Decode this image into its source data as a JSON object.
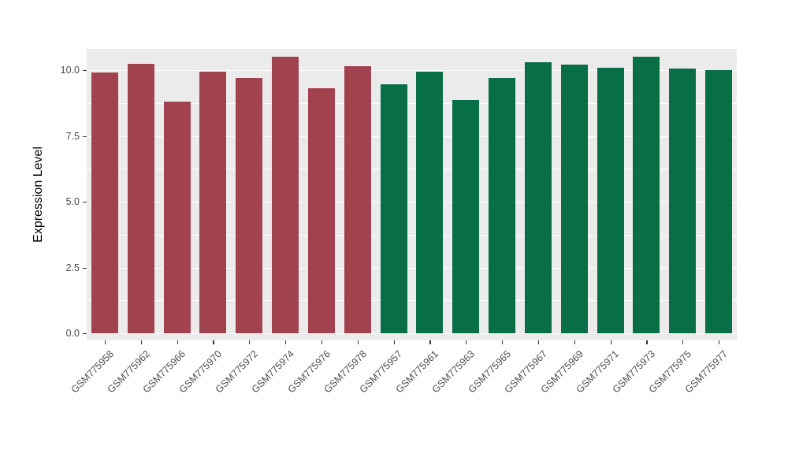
{
  "chart_data": {
    "type": "bar",
    "title": "",
    "xlabel": "",
    "ylabel": "Expression Level",
    "ylim": [
      0,
      10.8
    ],
    "yticks": [
      0.0,
      2.5,
      5.0,
      7.5,
      10.0
    ],
    "ytick_labels": [
      "0.0",
      "2.5",
      "5.0",
      "7.5",
      "10.0"
    ],
    "grid": true,
    "legend_position": "none",
    "panel_background": "#EBEBEB",
    "grid_color": "#FFFFFF",
    "categories": [
      "GSM775958",
      "GSM775962",
      "GSM775966",
      "GSM775970",
      "GSM775972",
      "GSM775974",
      "GSM775976",
      "GSM775978",
      "GSM775957",
      "GSM775961",
      "GSM775963",
      "GSM775965",
      "GSM775967",
      "GSM775969",
      "GSM775971",
      "GSM775973",
      "GSM775975",
      "GSM775977"
    ],
    "values": [
      9.9,
      10.25,
      8.8,
      9.95,
      9.7,
      10.5,
      9.3,
      10.15,
      9.45,
      9.95,
      8.85,
      9.7,
      10.3,
      10.2,
      10.1,
      10.5,
      10.05,
      10.0
    ],
    "groups": [
      "red",
      "red",
      "red",
      "red",
      "red",
      "red",
      "red",
      "red",
      "green",
      "green",
      "green",
      "green",
      "green",
      "green",
      "green",
      "green",
      "green",
      "green"
    ],
    "group_colors": {
      "red": "#A0434E",
      "green": "#086E45"
    }
  }
}
